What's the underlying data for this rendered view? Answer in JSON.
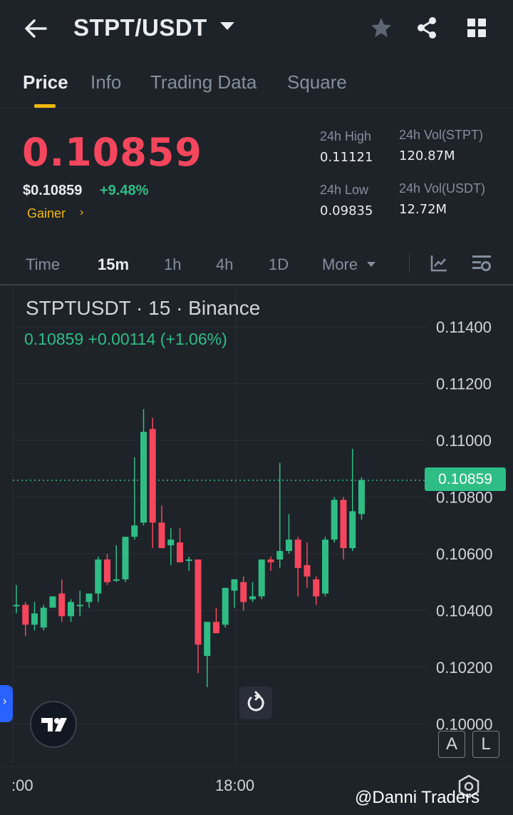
{
  "header": {
    "title": "STPT/USDT",
    "icons": [
      "back-arrow-icon",
      "star-icon",
      "share-icon",
      "grid-icon"
    ]
  },
  "tabs": [
    {
      "label": "Price",
      "active": true
    },
    {
      "label": "Info",
      "active": false
    },
    {
      "label": "Trading Data",
      "active": false
    },
    {
      "label": "Square",
      "active": false
    }
  ],
  "ticker": {
    "last_price": "0.10859",
    "usd_price": "$0.10859",
    "change_pct": "+9.48%",
    "tag": "Gainer",
    "tag_arrow": "›",
    "stats": {
      "high_label": "24h High",
      "high_value": "0.11121",
      "low_label": "24h Low",
      "low_value": "0.09835",
      "vol_base_label": "24h Vol(STPT)",
      "vol_base_value": "120.87M",
      "vol_quote_label": "24h Vol(USDT)",
      "vol_quote_value": "12.72M"
    },
    "colors": {
      "down": "#f6465d",
      "up": "#2ebd85",
      "accent": "#f0b90b"
    }
  },
  "intervals": {
    "items": [
      "Time",
      "15m",
      "1h",
      "4h",
      "1D",
      "More"
    ],
    "active": "15m",
    "icons": [
      "indicator-icon",
      "chart-settings-icon"
    ]
  },
  "chart": {
    "symbol_line": "STPTUSDT · 15 · Binance",
    "ohlc_line": "0.10859  +0.00114 (+1.06%)",
    "last_price_tag": "0.10859",
    "time_labels": [
      ":00",
      "18:00"
    ],
    "scale_buttons": [
      "A",
      "L"
    ],
    "watermark": "@Danni Traders",
    "icons": [
      "tradingview-logo-icon",
      "reset-chart-icon",
      "expand-panel-icon",
      "settings-gear-icon"
    ]
  },
  "chart_data": {
    "type": "candlestick",
    "title": "STPTUSDT · 15 · Binance",
    "xlabel": "",
    "ylabel": "",
    "ylim": [
      0.1,
      0.115
    ],
    "y_ticks": [
      0.114,
      0.112,
      0.11,
      0.108,
      0.106,
      0.104,
      0.102,
      0.1
    ],
    "y_tick_labels": [
      "0.11400",
      "0.11200",
      "0.11000",
      "0.10800",
      "0.10600",
      "0.10400",
      "0.10200",
      "0.10000"
    ],
    "x_tick_labels": [
      ":00",
      "18:00"
    ],
    "last_price": 0.10859,
    "grid": true,
    "candles": [
      {
        "o": 0.1042,
        "h": 0.1049,
        "l": 0.1039,
        "c": 0.1042
      },
      {
        "o": 0.1042,
        "h": 0.1043,
        "l": 0.1031,
        "c": 0.1035
      },
      {
        "o": 0.1035,
        "h": 0.1043,
        "l": 0.1033,
        "c": 0.1039
      },
      {
        "o": 0.1034,
        "h": 0.1042,
        "l": 0.1033,
        "c": 0.1041
      },
      {
        "o": 0.1041,
        "h": 0.1044,
        "l": 0.1041,
        "c": 0.1045
      },
      {
        "o": 0.1046,
        "h": 0.1051,
        "l": 0.1036,
        "c": 0.1038
      },
      {
        "o": 0.1038,
        "h": 0.1044,
        "l": 0.1036,
        "c": 0.1043
      },
      {
        "o": 0.1042,
        "h": 0.1047,
        "l": 0.1038,
        "c": 0.1042
      },
      {
        "o": 0.1043,
        "h": 0.1045,
        "l": 0.1041,
        "c": 0.1046
      },
      {
        "o": 0.1046,
        "h": 0.1059,
        "l": 0.1043,
        "c": 0.1058
      },
      {
        "o": 0.1058,
        "h": 0.106,
        "l": 0.1049,
        "c": 0.105
      },
      {
        "o": 0.1051,
        "h": 0.1063,
        "l": 0.105,
        "c": 0.1051
      },
      {
        "o": 0.1051,
        "h": 0.1066,
        "l": 0.105,
        "c": 0.1066
      },
      {
        "o": 0.1066,
        "h": 0.1094,
        "l": 0.1065,
        "c": 0.107
      },
      {
        "o": 0.1071,
        "h": 0.1111,
        "l": 0.107,
        "c": 0.1103
      },
      {
        "o": 0.1104,
        "h": 0.1108,
        "l": 0.1062,
        "c": 0.1071
      },
      {
        "o": 0.1071,
        "h": 0.1077,
        "l": 0.1062,
        "c": 0.1062
      },
      {
        "o": 0.1063,
        "h": 0.1069,
        "l": 0.1056,
        "c": 0.1065
      },
      {
        "o": 0.1064,
        "h": 0.1069,
        "l": 0.1057,
        "c": 0.1057
      },
      {
        "o": 0.1058,
        "h": 0.1059,
        "l": 0.1054,
        "c": 0.1058
      },
      {
        "o": 0.1058,
        "h": 0.1058,
        "l": 0.1018,
        "c": 0.1028
      },
      {
        "o": 0.1024,
        "h": 0.1036,
        "l": 0.1013,
        "c": 0.1036
      },
      {
        "o": 0.1036,
        "h": 0.1041,
        "l": 0.1033,
        "c": 0.1032
      },
      {
        "o": 0.1035,
        "h": 0.1047,
        "l": 0.1034,
        "c": 0.1048
      },
      {
        "o": 0.1047,
        "h": 0.1051,
        "l": 0.1041,
        "c": 0.1051
      },
      {
        "o": 0.105,
        "h": 0.1052,
        "l": 0.104,
        "c": 0.1043
      },
      {
        "o": 0.1044,
        "h": 0.105,
        "l": 0.1043,
        "c": 0.1045
      },
      {
        "o": 0.1045,
        "h": 0.1058,
        "l": 0.1044,
        "c": 0.1058
      },
      {
        "o": 0.1058,
        "h": 0.1059,
        "l": 0.1054,
        "c": 0.1057
      },
      {
        "o": 0.1058,
        "h": 0.1092,
        "l": 0.1055,
        "c": 0.1061
      },
      {
        "o": 0.1061,
        "h": 0.1074,
        "l": 0.106,
        "c": 0.1065
      },
      {
        "o": 0.1065,
        "h": 0.1066,
        "l": 0.1045,
        "c": 0.1055
      },
      {
        "o": 0.1056,
        "h": 0.1064,
        "l": 0.1048,
        "c": 0.1052
      },
      {
        "o": 0.1051,
        "h": 0.1052,
        "l": 0.1042,
        "c": 0.1045
      },
      {
        "o": 0.1046,
        "h": 0.1066,
        "l": 0.1045,
        "c": 0.1065
      },
      {
        "o": 0.1065,
        "h": 0.108,
        "l": 0.1064,
        "c": 0.1079
      },
      {
        "o": 0.1079,
        "h": 0.108,
        "l": 0.1058,
        "c": 0.1062
      },
      {
        "o": 0.1062,
        "h": 0.1097,
        "l": 0.1061,
        "c": 0.1075
      },
      {
        "o": 0.1074,
        "h": 0.1087,
        "l": 0.1072,
        "c": 0.1086
      }
    ]
  }
}
